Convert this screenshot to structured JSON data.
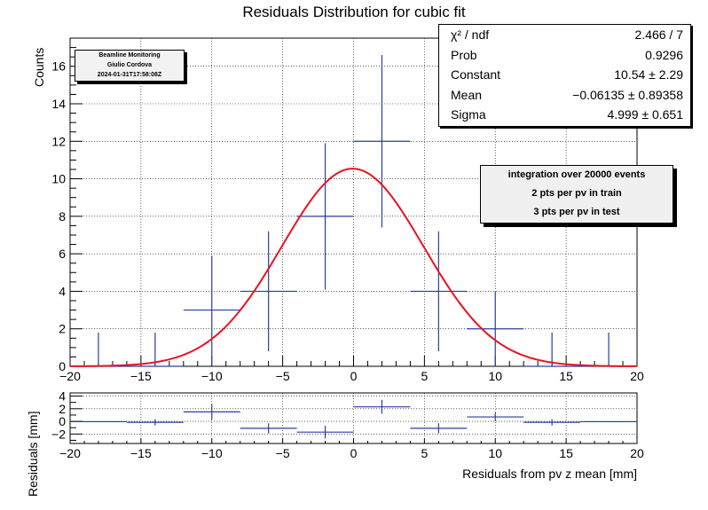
{
  "chart_data": [
    {
      "type": "histogram",
      "title": "Residuals Distribution for cubic fit",
      "xlabel": "",
      "ylabel": "Counts",
      "xlim": [
        -20,
        20
      ],
      "ylim": [
        0,
        17.5
      ],
      "xticks": [
        -20,
        -15,
        -10,
        -5,
        0,
        5,
        10,
        15,
        20
      ],
      "yticks": [
        0,
        2,
        4,
        6,
        8,
        10,
        12,
        14,
        16
      ],
      "grid": true,
      "series": [
        {
          "kind": "data-with-errors",
          "color": "#2a3f9e",
          "points": [
            {
              "x": -18,
              "y": 0,
              "xerr": 2,
              "yerr": 1.8
            },
            {
              "x": -14,
              "y": 0,
              "xerr": 2,
              "yerr": 1.8
            },
            {
              "x": -10,
              "y": 3,
              "xerr": 2,
              "yerr": 2.9
            },
            {
              "x": -6,
              "y": 4,
              "xerr": 2,
              "yerr": 3.2
            },
            {
              "x": -2,
              "y": 8,
              "xerr": 2,
              "yerr": 3.9
            },
            {
              "x": 2,
              "y": 12,
              "xerr": 2,
              "yerr": 4.6
            },
            {
              "x": 6,
              "y": 4,
              "xerr": 2,
              "yerr": 3.2
            },
            {
              "x": 10,
              "y": 2,
              "xerr": 2,
              "yerr": 2.0
            },
            {
              "x": 14,
              "y": 0,
              "xerr": 2,
              "yerr": 1.8
            },
            {
              "x": 18,
              "y": 0,
              "xerr": 2,
              "yerr": 1.8
            }
          ]
        },
        {
          "kind": "gaussian-fit",
          "color": "#e8131f",
          "constant": 10.54,
          "mean": -0.06135,
          "sigma": 4.999
        }
      ],
      "stats": [
        {
          "label": "χ² / ndf",
          "value": "2.466 / 7"
        },
        {
          "label": "Prob",
          "value": "0.9296"
        },
        {
          "label": "Constant",
          "value": "10.54 ± 2.29"
        },
        {
          "label": "Mean",
          "value": "−0.06135 ± 0.89358"
        },
        {
          "label": "Sigma",
          "value": "4.999 ± 0.651"
        }
      ],
      "stamp": [
        "Beamline Monitoring",
        "Giulio Cordova",
        "2024-01-31T17:58:08Z"
      ],
      "info": [
        "integration over 20000 events",
        "2 pts per pv in train",
        "3 pts per pv in test"
      ]
    },
    {
      "type": "residuals",
      "title": "",
      "xlabel": "Residuals from pv z mean  [mm]",
      "ylabel": "Residuals [mm]",
      "xlim": [
        -20,
        20
      ],
      "ylim": [
        -3.5,
        4.5
      ],
      "xticks": [
        -20,
        -15,
        -10,
        -5,
        0,
        5,
        10,
        15,
        20
      ],
      "yticks": [
        -2,
        0,
        2,
        4
      ],
      "grid": true,
      "series": [
        {
          "color": "#2a3f9e",
          "points": [
            {
              "x": -18,
              "y": -0.05,
              "xerr": 2,
              "yerr": 0.0
            },
            {
              "x": -14,
              "y": -0.15,
              "xerr": 2,
              "yerr": 0.5
            },
            {
              "x": -10,
              "y": 1.5,
              "xerr": 2,
              "yerr": 1.2
            },
            {
              "x": -6,
              "y": -1.1,
              "xerr": 2,
              "yerr": 0.8
            },
            {
              "x": -2,
              "y": -1.7,
              "xerr": 2,
              "yerr": 1.0
            },
            {
              "x": 2,
              "y": 2.3,
              "xerr": 2,
              "yerr": 1.1
            },
            {
              "x": 6,
              "y": -1.1,
              "xerr": 2,
              "yerr": 0.8
            },
            {
              "x": 10,
              "y": 0.7,
              "xerr": 2,
              "yerr": 0.7
            },
            {
              "x": 14,
              "y": -0.15,
              "xerr": 2,
              "yerr": 0.5
            },
            {
              "x": 18,
              "y": -0.05,
              "xerr": 2,
              "yerr": 0.0
            }
          ]
        }
      ]
    }
  ]
}
